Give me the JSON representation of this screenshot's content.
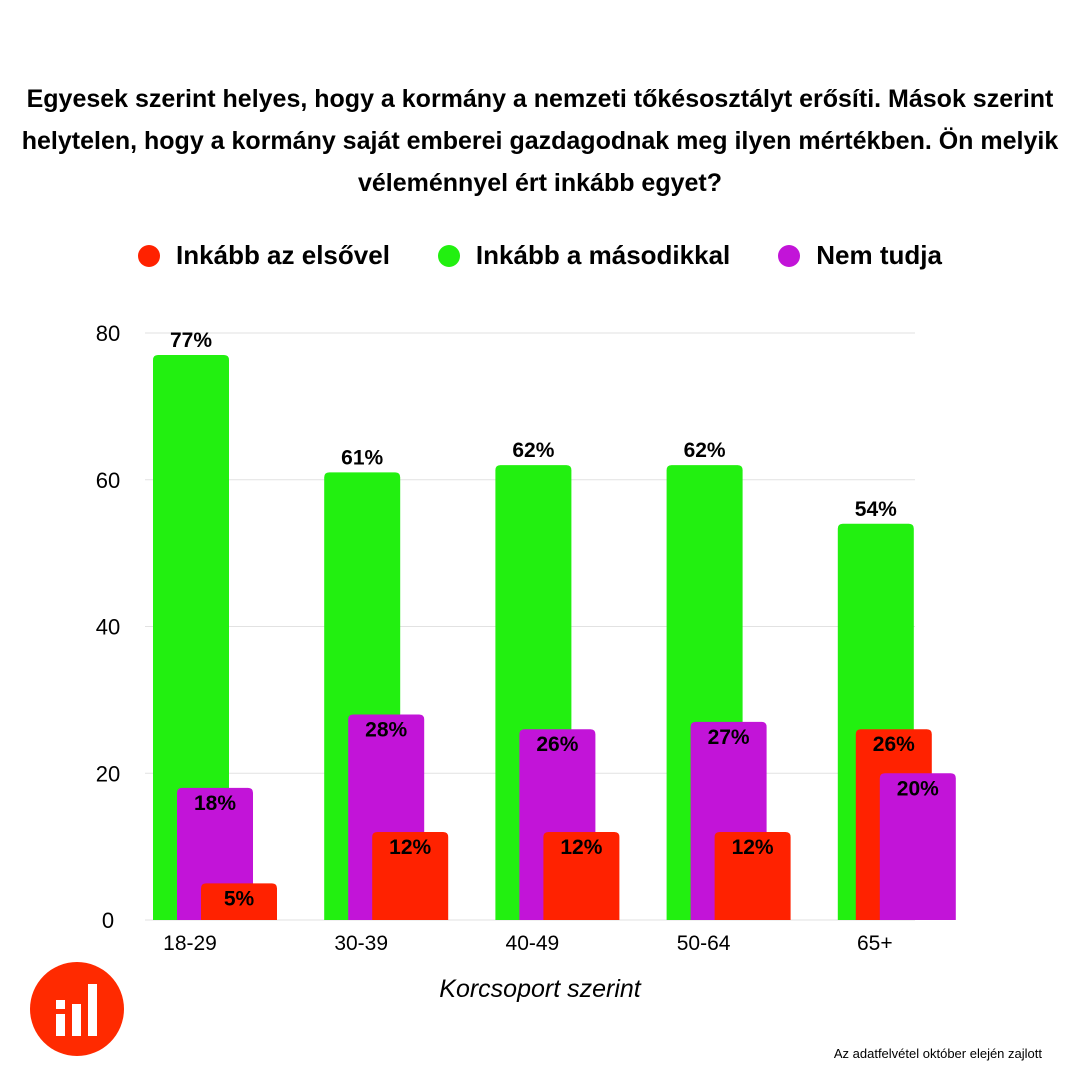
{
  "chart_data": {
    "type": "bar",
    "title": "Egyesek szerint helyes, hogy a kormány a nemzeti tőkésosztályt erősíti. Mások szerint helytelen, hogy a kormány saját emberei gazdagodnak meg ilyen mértékben. Ön melyik véleménnyel ért inkább egyet?",
    "xlabel": "Korcsoport szerint",
    "ylabel": "",
    "ylim": [
      0,
      80
    ],
    "yticks": [
      0,
      20,
      40,
      60,
      80
    ],
    "grid": true,
    "legend_position": "top",
    "categories": [
      "18-29",
      "30-39",
      "40-49",
      "50-64",
      "65+"
    ],
    "series": [
      {
        "name": "Inkább az elsővel",
        "color": "#ff2200",
        "values": [
          5,
          12,
          12,
          12,
          26
        ],
        "labels": [
          "5%",
          "12%",
          "12%",
          "12%",
          "26%"
        ]
      },
      {
        "name": "Inkább a másodikkal",
        "color": "#22f010",
        "values": [
          77,
          61,
          62,
          62,
          54
        ],
        "labels": [
          "77%",
          "61%",
          "62%",
          "62%",
          "54%"
        ]
      },
      {
        "name": "Nem tudja",
        "color": "#c214d8",
        "values": [
          18,
          28,
          26,
          27,
          20
        ],
        "labels": [
          "18%",
          "28%",
          "26%",
          "27%",
          "20%"
        ]
      }
    ]
  },
  "footnote": "Az adatfelvétel  október elején zajlott"
}
